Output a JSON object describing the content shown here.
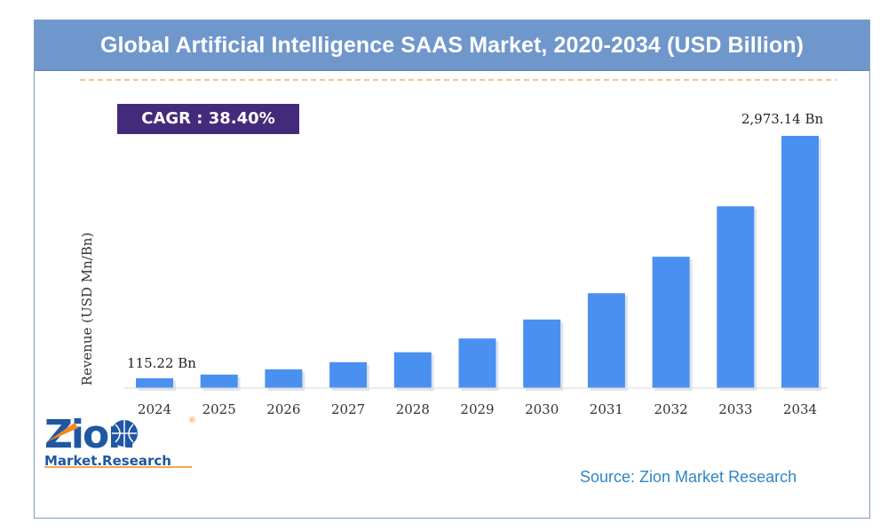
{
  "header": {
    "title": "Global Artificial Intelligence SAAS Market, 2020-2034 (USD Billion)"
  },
  "cagr": {
    "label": "CAGR : 38.40%"
  },
  "source": {
    "text": "Source: Zion Market Research"
  },
  "logo": {
    "word": "Zion",
    "tagline": "Market.Research",
    "registered": "®"
  },
  "colors": {
    "title_bg": "#6f97cc",
    "bar": "#4a90f0",
    "cagr_bg": "#442a7a",
    "source_text": "#2f86c6",
    "logo_blue": "#1f57a4",
    "logo_orange": "#f08a1c"
  },
  "chart_data": {
    "type": "bar",
    "title": "Global Artificial Intelligence SAAS Market, 2020-2034 (USD Billion)",
    "xlabel": "",
    "ylabel": "Revenue (USD Mn/Bn)",
    "categories": [
      "2024",
      "2025",
      "2026",
      "2027",
      "2028",
      "2029",
      "2030",
      "2031",
      "2032",
      "2033",
      "2034"
    ],
    "values": [
      115.22,
      159,
      220,
      305,
      422,
      584,
      808,
      1118,
      1548,
      2143,
      2973.14
    ],
    "data_labels": [
      {
        "index": 0,
        "text": "115.22 Bn"
      },
      {
        "index": 10,
        "text": "2,973.14 Bn"
      }
    ],
    "ylim": [
      0,
      3000
    ],
    "grid": false,
    "legend": "none"
  }
}
